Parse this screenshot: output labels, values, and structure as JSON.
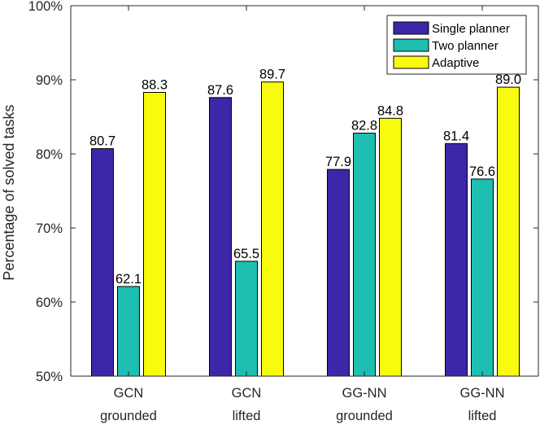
{
  "chart_data": {
    "type": "bar",
    "title": "",
    "xlabel": "",
    "ylabel": "Percentage of solved tasks",
    "ylim": [
      50,
      100
    ],
    "yticks": [
      50,
      60,
      70,
      80,
      90,
      100
    ],
    "ytick_labels": [
      "50%",
      "60%",
      "70%",
      "80%",
      "90%",
      "100%"
    ],
    "categories": [
      {
        "line1": "GCN",
        "line2": "grounded"
      },
      {
        "line1": "GCN",
        "line2": "lifted"
      },
      {
        "line1": "GG-NN",
        "line2": "grounded"
      },
      {
        "line1": "GG-NN",
        "line2": "lifted"
      }
    ],
    "series": [
      {
        "name": "Single planner",
        "color": "#3e26a8",
        "values": [
          80.7,
          87.6,
          77.9,
          81.4
        ],
        "labels": [
          "80.7",
          "87.6",
          "77.9",
          "81.4"
        ]
      },
      {
        "name": "Two planner",
        "color": "#1ebfb0",
        "values": [
          62.1,
          65.5,
          82.8,
          76.6
        ],
        "labels": [
          "62.1",
          "65.5",
          "82.8",
          "76.6"
        ]
      },
      {
        "name": "Adaptive",
        "color": "#f9fb0e",
        "values": [
          88.3,
          89.7,
          84.8,
          89.0
        ],
        "labels": [
          "88.3",
          "89.7",
          "84.8",
          "89.0"
        ]
      }
    ],
    "grid": false,
    "legend_position": "top-right"
  }
}
